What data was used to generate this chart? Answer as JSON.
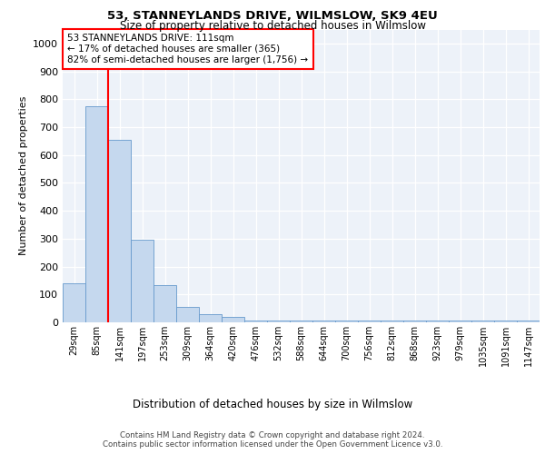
{
  "title": "53, STANNEYLANDS DRIVE, WILMSLOW, SK9 4EU",
  "subtitle": "Size of property relative to detached houses in Wilmslow",
  "xlabel": "Distribution of detached houses by size in Wilmslow",
  "ylabel": "Number of detached properties",
  "bar_labels": [
    "29sqm",
    "85sqm",
    "141sqm",
    "197sqm",
    "253sqm",
    "309sqm",
    "364sqm",
    "420sqm",
    "476sqm",
    "532sqm",
    "588sqm",
    "644sqm",
    "700sqm",
    "756sqm",
    "812sqm",
    "868sqm",
    "923sqm",
    "979sqm",
    "1035sqm",
    "1091sqm",
    "1147sqm"
  ],
  "bar_values": [
    140,
    775,
    655,
    295,
    135,
    55,
    30,
    20,
    8,
    8,
    5,
    5,
    5,
    5,
    5,
    5,
    5,
    5,
    5,
    5,
    5
  ],
  "bar_color": "#c5d8ee",
  "bar_edgecolor": "#6699cc",
  "vline_x": 1.5,
  "vline_color": "red",
  "ylim": [
    0,
    1050
  ],
  "yticks": [
    0,
    100,
    200,
    300,
    400,
    500,
    600,
    700,
    800,
    900,
    1000
  ],
  "annotation_text": "53 STANNEYLANDS DRIVE: 111sqm\n← 17% of detached houses are smaller (365)\n82% of semi-detached houses are larger (1,756) →",
  "annotation_box_color": "white",
  "annotation_box_edgecolor": "red",
  "footer_text": "Contains HM Land Registry data © Crown copyright and database right 2024.\nContains public sector information licensed under the Open Government Licence v3.0.",
  "bg_color": "#edf2f9",
  "grid_color": "white"
}
